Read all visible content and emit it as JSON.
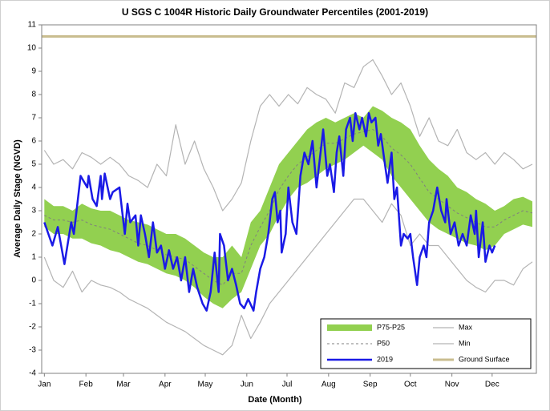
{
  "chart_data": {
    "type": "line",
    "title": "U SGS C 1004R Historic Daily Groundwater Percentiles (2001-2019)",
    "xlabel": "Date (Month)",
    "ylabel": "Average Daily Stage (NGVD)",
    "xlim": [
      -1,
      368
    ],
    "xticks": [
      {
        "value": 1,
        "label": "Jan"
      },
      {
        "value": 32,
        "label": "Feb"
      },
      {
        "value": 60,
        "label": "Mar"
      },
      {
        "value": 91,
        "label": "Apr"
      },
      {
        "value": 121,
        "label": "May"
      },
      {
        "value": 152,
        "label": "Jun"
      },
      {
        "value": 182,
        "label": "Jul"
      },
      {
        "value": 213,
        "label": "Aug"
      },
      {
        "value": 244,
        "label": "Sep"
      },
      {
        "value": 274,
        "label": "Oct"
      },
      {
        "value": 305,
        "label": "Nov"
      },
      {
        "value": 335,
        "label": "Dec"
      }
    ],
    "ylim": [
      -4,
      11
    ],
    "yticks": [
      -4,
      -3,
      -2,
      -1,
      0,
      1,
      2,
      3,
      4,
      5,
      6,
      7,
      8,
      9,
      10,
      11
    ],
    "grid": false,
    "legend": "lower right",
    "series": [
      {
        "name": "P75-P25",
        "style": "band",
        "color": "#92d050",
        "x": [
          1,
          8,
          15,
          22,
          29,
          36,
          43,
          50,
          57,
          64,
          71,
          78,
          85,
          92,
          99,
          106,
          113,
          120,
          127,
          134,
          141,
          148,
          155,
          162,
          169,
          176,
          183,
          190,
          197,
          204,
          211,
          218,
          225,
          232,
          239,
          246,
          253,
          260,
          267,
          274,
          281,
          288,
          295,
          302,
          309,
          316,
          323,
          330,
          337,
          344,
          351,
          358,
          365
        ],
        "upper": [
          3.5,
          3.2,
          3.2,
          3.0,
          3.3,
          3.1,
          3.0,
          3.0,
          2.8,
          2.6,
          2.5,
          2.4,
          2.2,
          2.0,
          2.0,
          1.8,
          1.5,
          1.2,
          1.0,
          1.0,
          1.5,
          1.0,
          2.5,
          3.0,
          4.0,
          5.0,
          5.5,
          6.0,
          6.5,
          6.8,
          7.0,
          6.8,
          7.0,
          7.2,
          7.0,
          7.5,
          7.3,
          7.0,
          6.8,
          6.5,
          5.8,
          5.2,
          4.8,
          4.5,
          4.0,
          3.8,
          3.5,
          3.3,
          3.0,
          3.2,
          3.5,
          3.6,
          3.4
        ],
        "lower": [
          2.3,
          2.0,
          2.0,
          1.8,
          1.8,
          1.6,
          1.5,
          1.3,
          1.2,
          1.0,
          0.8,
          0.7,
          0.5,
          0.3,
          0.2,
          0.0,
          -0.3,
          -0.7,
          -1.0,
          -1.2,
          -0.8,
          -0.5,
          0.5,
          1.5,
          2.0,
          2.8,
          3.5,
          4.0,
          4.2,
          4.5,
          4.8,
          5.0,
          5.2,
          5.5,
          5.8,
          5.5,
          5.2,
          4.5,
          4.0,
          3.5,
          3.0,
          2.5,
          2.2,
          2.0,
          1.8,
          1.6,
          1.5,
          1.3,
          1.5,
          2.0,
          2.2,
          2.4,
          2.3
        ]
      },
      {
        "name": "Max",
        "style": "solid",
        "color": "#b4b4b4",
        "x": [
          1,
          8,
          15,
          22,
          29,
          36,
          43,
          50,
          57,
          64,
          71,
          78,
          85,
          92,
          99,
          106,
          113,
          120,
          127,
          134,
          141,
          148,
          155,
          162,
          169,
          176,
          183,
          190,
          197,
          204,
          211,
          218,
          225,
          232,
          239,
          246,
          253,
          260,
          267,
          274,
          281,
          288,
          295,
          302,
          309,
          316,
          323,
          330,
          337,
          344,
          351,
          358,
          365
        ],
        "values": [
          5.6,
          5.0,
          5.2,
          4.8,
          5.5,
          5.3,
          5.0,
          5.3,
          5.0,
          4.5,
          4.3,
          4.0,
          5.0,
          4.5,
          6.7,
          5.0,
          6.0,
          4.8,
          4.0,
          3.0,
          3.5,
          4.2,
          6.0,
          7.5,
          8.0,
          7.5,
          8.0,
          7.6,
          8.3,
          8.0,
          7.8,
          7.2,
          8.5,
          8.3,
          9.2,
          9.5,
          8.8,
          8.0,
          8.5,
          7.5,
          6.2,
          7.0,
          6.0,
          5.8,
          6.5,
          5.5,
          5.2,
          5.5,
          5.0,
          5.5,
          5.2,
          4.8,
          5.0
        ]
      },
      {
        "name": "P50",
        "style": "dashed",
        "color": "#7f7f7f",
        "x": [
          1,
          8,
          15,
          22,
          29,
          36,
          43,
          50,
          57,
          64,
          71,
          78,
          85,
          92,
          99,
          106,
          113,
          120,
          127,
          134,
          141,
          148,
          155,
          162,
          169,
          176,
          183,
          190,
          197,
          204,
          211,
          218,
          225,
          232,
          239,
          246,
          253,
          260,
          267,
          274,
          281,
          288,
          295,
          302,
          309,
          316,
          323,
          330,
          337,
          344,
          351,
          358,
          365
        ],
        "values": [
          2.8,
          2.6,
          2.6,
          2.5,
          2.6,
          2.4,
          2.3,
          2.2,
          2.0,
          1.8,
          1.6,
          1.5,
          1.3,
          1.1,
          1.0,
          0.9,
          0.6,
          0.3,
          0.0,
          -0.2,
          0.3,
          0.3,
          1.5,
          2.3,
          3.0,
          3.9,
          4.5,
          5.0,
          5.3,
          5.6,
          5.9,
          5.9,
          6.1,
          6.3,
          6.4,
          6.5,
          6.2,
          5.7,
          5.4,
          5.0,
          4.4,
          3.8,
          3.5,
          3.2,
          2.9,
          2.7,
          2.5,
          2.3,
          2.3,
          2.6,
          2.8,
          3.0,
          2.9
        ]
      },
      {
        "name": "Min",
        "style": "solid",
        "color": "#b4b4b4",
        "x": [
          1,
          8,
          15,
          22,
          29,
          36,
          43,
          50,
          57,
          64,
          71,
          78,
          85,
          92,
          99,
          106,
          113,
          120,
          127,
          134,
          141,
          148,
          155,
          162,
          169,
          176,
          183,
          190,
          197,
          204,
          211,
          218,
          225,
          232,
          239,
          246,
          253,
          260,
          267,
          274,
          281,
          288,
          295,
          302,
          309,
          316,
          323,
          330,
          337,
          344,
          351,
          358,
          365
        ],
        "values": [
          1.0,
          0.0,
          -0.3,
          0.4,
          -0.5,
          0.0,
          -0.2,
          -0.3,
          -0.5,
          -0.8,
          -1.0,
          -1.2,
          -1.5,
          -1.8,
          -2.0,
          -2.2,
          -2.5,
          -2.8,
          -3.0,
          -3.2,
          -2.8,
          -1.5,
          -2.5,
          -1.8,
          -1.0,
          -0.5,
          0.0,
          0.5,
          1.0,
          1.5,
          2.0,
          2.5,
          3.0,
          3.5,
          3.5,
          3.0,
          2.5,
          3.3,
          2.8,
          1.5,
          2.0,
          1.5,
          1.5,
          1.0,
          0.5,
          0.0,
          -0.3,
          -0.5,
          0.0,
          0.0,
          -0.2,
          0.5,
          0.8
        ]
      },
      {
        "name": "2019",
        "style": "bold",
        "color": "#1a1ae6",
        "x": [
          1,
          7,
          11,
          16,
          21,
          23,
          25,
          28,
          30,
          33,
          34,
          37,
          40,
          43,
          44,
          46,
          50,
          52,
          57,
          59,
          61,
          63,
          65,
          69,
          71,
          73,
          76,
          79,
          82,
          85,
          88,
          91,
          94,
          97,
          100,
          103,
          106,
          109,
          112,
          115,
          119,
          122,
          125,
          128,
          131,
          132,
          135,
          138,
          141,
          144,
          147,
          150,
          153,
          157,
          159,
          162,
          165,
          168,
          171,
          173,
          175,
          177,
          178,
          181,
          183,
          186,
          189,
          192,
          195,
          198,
          201,
          204,
          207,
          209,
          212,
          214,
          217,
          219,
          221,
          224,
          226,
          229,
          231,
          233,
          236,
          238,
          241,
          243,
          245,
          248,
          250,
          252,
          255,
          257,
          260,
          262,
          264,
          267,
          269,
          272,
          274,
          276,
          279,
          281,
          284,
          286,
          288,
          291,
          294,
          297,
          300,
          301,
          304,
          307,
          310,
          313,
          316,
          319,
          322,
          323,
          325,
          328,
          330,
          333,
          335,
          337
        ],
        "values": [
          2.5,
          1.5,
          2.3,
          0.7,
          2.5,
          2.0,
          3.0,
          4.5,
          4.3,
          4.0,
          4.5,
          3.5,
          3.2,
          4.5,
          3.5,
          4.6,
          3.5,
          3.8,
          4.0,
          3.0,
          2.0,
          3.3,
          2.5,
          2.8,
          1.5,
          2.8,
          2.0,
          1.0,
          2.5,
          1.2,
          1.5,
          0.5,
          1.3,
          0.5,
          1.0,
          0.0,
          1.0,
          -0.5,
          0.5,
          -0.3,
          -1.0,
          -1.3,
          -0.5,
          1.2,
          -0.5,
          2.0,
          1.5,
          0.0,
          0.5,
          -0.2,
          -1.0,
          -1.2,
          -0.8,
          -1.3,
          -0.5,
          0.5,
          1.0,
          2.0,
          3.5,
          3.8,
          2.5,
          3.0,
          1.2,
          2.0,
          4.0,
          2.5,
          2.0,
          4.5,
          5.5,
          5.0,
          6.0,
          4.0,
          5.5,
          6.5,
          4.5,
          5.0,
          3.8,
          5.5,
          6.2,
          4.5,
          6.5,
          7.0,
          6.0,
          7.2,
          6.5,
          7.0,
          6.2,
          7.2,
          6.8,
          7.0,
          5.8,
          6.3,
          5.0,
          4.2,
          5.5,
          3.5,
          4.0,
          1.5,
          2.0,
          1.8,
          2.0,
          1.0,
          -0.2,
          1.0,
          1.5,
          1.0,
          2.5,
          3.0,
          4.0,
          3.0,
          2.5,
          3.5,
          2.0,
          2.5,
          1.5,
          2.0,
          1.5,
          2.8,
          2.0,
          3.0,
          1.0,
          2.5,
          0.8,
          1.5,
          1.2,
          1.5
        ]
      },
      {
        "name": "Ground Surface",
        "style": "thick",
        "color": "#c9bd8f",
        "x": [
          -1,
          368
        ],
        "values": [
          10.5,
          10.5
        ]
      }
    ]
  }
}
